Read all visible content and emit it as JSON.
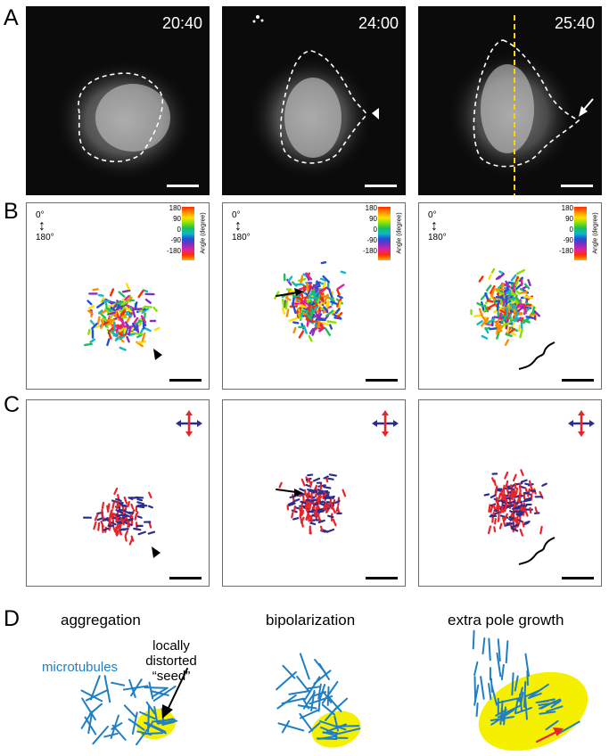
{
  "panel_labels": [
    "A",
    "B",
    "C",
    "D"
  ],
  "row_a": {
    "timestamps": [
      "20:40",
      "24:00",
      "25:40"
    ]
  },
  "row_b": {
    "orientation_top": "0°",
    "orientation_bottom": "180°",
    "colorbar_ticks": [
      "180",
      "90",
      "0",
      "-90",
      "-180"
    ],
    "colorbar_title": "Angle (degree)"
  },
  "row_d": {
    "titles": [
      "aggregation",
      "bipolarization",
      "extra pole growth"
    ],
    "microtubules_label": "microtubules",
    "seed_label_line1": "locally",
    "seed_label_line2": "distorted",
    "seed_label_line3": "“seed”"
  },
  "colors": {
    "microtubule_blue": "#1f7fc4",
    "seed_yellow": "#f5f000",
    "vertical_red": "#e8242a",
    "horizontal_navy": "#2b2e8c",
    "trace_yellow": "#ffd500"
  }
}
